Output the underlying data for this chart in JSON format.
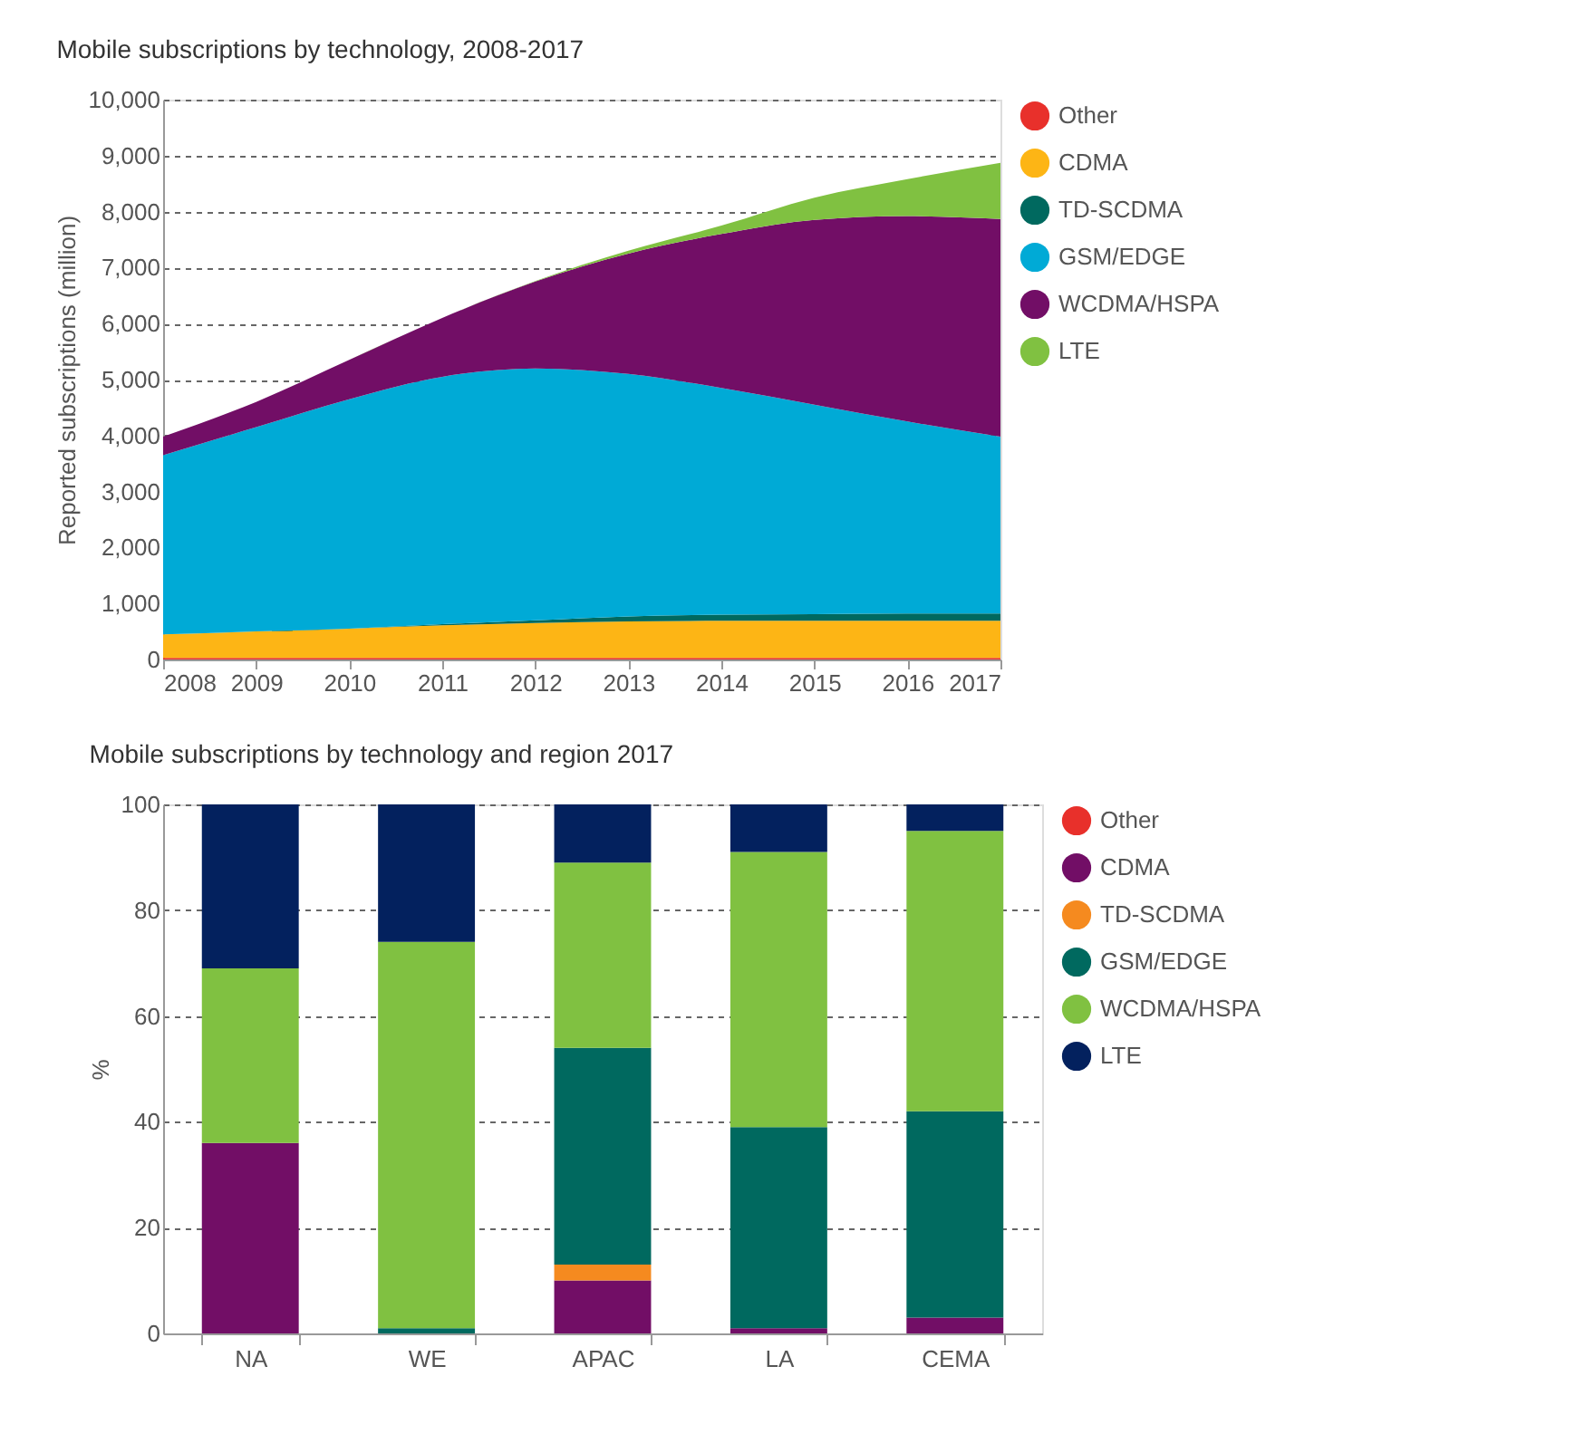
{
  "chart_data": [
    {
      "type": "area",
      "title": "Mobile subscriptions by technology, 2008-2017",
      "ylabel": "Reported subscriptions (million)",
      "stacked": true,
      "x": [
        2008,
        2009,
        2010,
        2011,
        2012,
        2013,
        2014,
        2015,
        2016,
        2017
      ],
      "xlim": [
        2008,
        2017
      ],
      "xticks": [
        2008,
        2009,
        2010,
        2011,
        2012,
        2013,
        2014,
        2015,
        2016,
        2017
      ],
      "ylim": [
        0,
        10000
      ],
      "yticks": [
        0,
        {
          "value": 1000,
          "label": "1,000"
        },
        {
          "value": 2000,
          "label": "2,000"
        },
        {
          "value": 3000,
          "label": "3,000"
        },
        {
          "value": 4000,
          "label": "4,000"
        },
        {
          "value": 5000,
          "label": "5,000"
        },
        {
          "value": 6000,
          "label": "6,000"
        },
        {
          "value": 7000,
          "label": "7,000"
        },
        {
          "value": 8000,
          "label": "8,000"
        },
        {
          "value": 9000,
          "label": "9,000"
        },
        {
          "value": 10000,
          "label": "10,000"
        }
      ],
      "grid": "y",
      "legend": "top right",
      "series": [
        {
          "name": "Other",
          "color": "#e8302b",
          "values": [
            30,
            30,
            30,
            30,
            30,
            30,
            30,
            30,
            30,
            30
          ]
        },
        {
          "name": "CDMA",
          "color": "#fdb515",
          "values": [
            420,
            470,
            520,
            580,
            620,
            650,
            660,
            660,
            660,
            660
          ]
        },
        {
          "name": "TD-SCDMA",
          "color": "#00695f",
          "values": [
            0,
            0,
            0,
            20,
            50,
            90,
            110,
            120,
            130,
            130
          ]
        },
        {
          "name": "GSM/EDGE",
          "color": "#00aad6",
          "values": [
            3200,
            3650,
            4100,
            4420,
            4500,
            4330,
            4050,
            3740,
            3430,
            3160
          ]
        },
        {
          "name": "WCDMA/HSPA",
          "color": "#720e66",
          "values": [
            330,
            450,
            700,
            1050,
            1550,
            2150,
            2750,
            3300,
            3670,
            3890
          ]
        },
        {
          "name": "LTE",
          "color": "#80c141",
          "values": [
            0,
            0,
            0,
            0,
            10,
            50,
            150,
            400,
            660,
            1000
          ]
        }
      ]
    },
    {
      "type": "bar",
      "title": "Mobile subscriptions by technology and region 2017",
      "ylabel": "%",
      "stacked": true,
      "categories": [
        "NA",
        "WE",
        "APAC",
        "LA",
        "CEMA"
      ],
      "ylim": [
        0,
        100
      ],
      "yticks": [
        0,
        20,
        40,
        60,
        80,
        100
      ],
      "grid": "y",
      "legend": "top right",
      "series": [
        {
          "name": "Other",
          "color": "#e8302b",
          "values": [
            0,
            0,
            0,
            0,
            0
          ]
        },
        {
          "name": "CDMA",
          "color": "#720e66",
          "values": [
            36,
            0,
            10,
            1,
            3
          ]
        },
        {
          "name": "TD-SCDMA",
          "color": "#f58a1f",
          "values": [
            0,
            0,
            3,
            0,
            0
          ]
        },
        {
          "name": "GSM/EDGE",
          "color": "#00695f",
          "values": [
            0,
            1,
            41,
            38,
            39
          ]
        },
        {
          "name": "WCDMA/HSPA",
          "color": "#80c141",
          "values": [
            33,
            73,
            35,
            52,
            53
          ]
        },
        {
          "name": "LTE",
          "color": "#03215e",
          "values": [
            31,
            26,
            11,
            9,
            5
          ]
        }
      ]
    }
  ]
}
